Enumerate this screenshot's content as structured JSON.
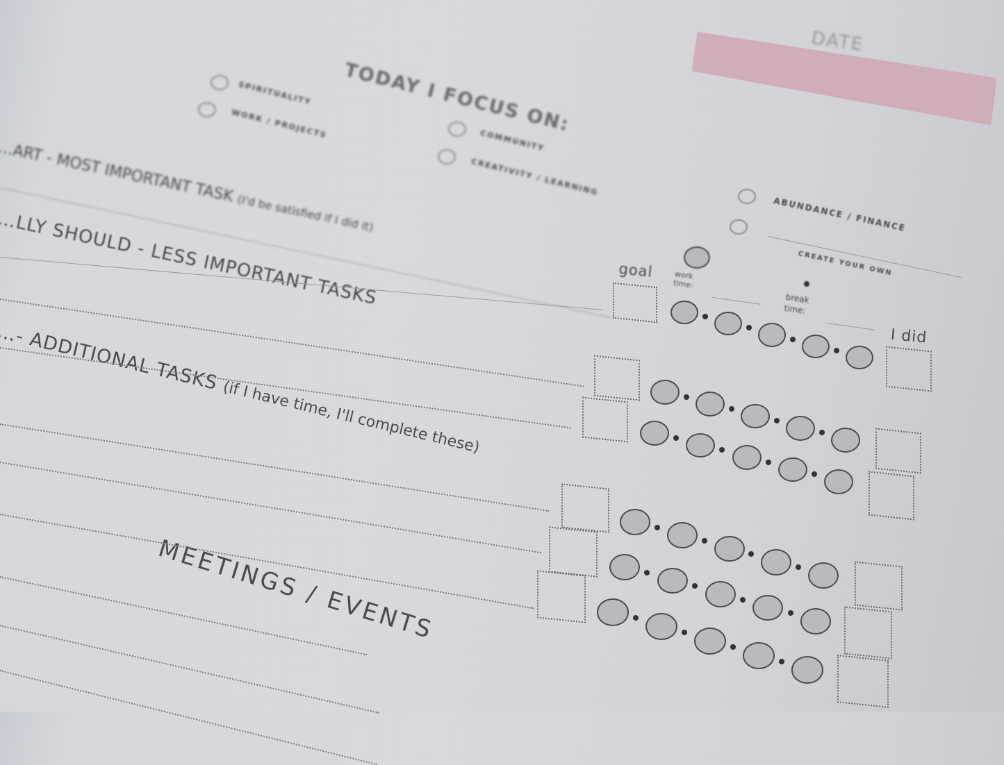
{
  "header": {
    "date_label": "DATE",
    "focus_title": "TODAY I FOCUS ON:"
  },
  "focus_options": [
    {
      "label": "SPIRITUALITY"
    },
    {
      "label": "WORK / PROJECTS"
    },
    {
      "label": "COMMUNITY"
    },
    {
      "label": "CREATIVITY / LEARNING"
    },
    {
      "label": "ABUNDANCE / FINANCE"
    },
    {
      "label": "CREATE YOUR OWN"
    }
  ],
  "sections": {
    "must": {
      "title": "…ART - MOST IMPORTANT TASK",
      "note": "(I'd be satisfied if I did it)"
    },
    "should": {
      "title": "…LLY SHOULD - LESS IMPORTANT  TASKS"
    },
    "could": {
      "title": "…- ADDITIONAL TASKS",
      "note": "(if I have time, I'll complete these)"
    },
    "meetings": {
      "title": "MEETINGS / EVENTS"
    }
  },
  "tracker": {
    "goal_label": "goal",
    "work_time_label": "work time:",
    "break_time_label": "break time:",
    "done_label": "I did"
  },
  "colors": {
    "accent_pink": "#cfa9b5",
    "paper": "#d9d9dd",
    "ink": "#4a4a4f"
  }
}
